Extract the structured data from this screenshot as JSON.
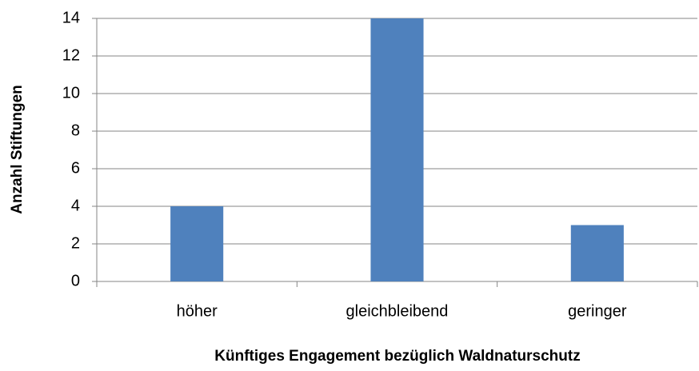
{
  "chart_data": {
    "type": "bar",
    "x_label": "Künftiges Engagement bezüglich Waldnaturschutz",
    "y_label": "Anzahl Stiftungen",
    "categories": [
      "höher",
      "gleichbleibend",
      "geringer"
    ],
    "values": [
      4,
      14,
      3
    ],
    "color": "#4f81bd",
    "ylim": [
      0,
      14
    ],
    "yticks": [
      0,
      2,
      4,
      6,
      8,
      10,
      12,
      14
    ],
    "grid": true
  }
}
